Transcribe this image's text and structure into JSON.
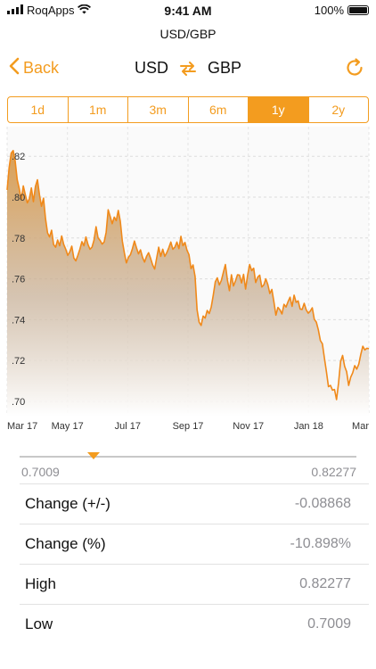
{
  "status_bar": {
    "carrier": "RoqApps",
    "time": "9:41 AM",
    "battery": "100%"
  },
  "screen_title": "USD/GBP",
  "nav": {
    "back_label": "Back",
    "from_currency": "USD",
    "to_currency": "GBP"
  },
  "range_tabs": [
    {
      "label": "1d",
      "active": false
    },
    {
      "label": "1m",
      "active": false
    },
    {
      "label": "3m",
      "active": false
    },
    {
      "label": "6m",
      "active": false
    },
    {
      "label": "1y",
      "active": true
    },
    {
      "label": "2y",
      "active": false
    }
  ],
  "colors": {
    "accent": "#f39c1f",
    "line": "#f0891a",
    "secondary_text": "#8e8e93"
  },
  "chart_data": {
    "type": "area",
    "x_tick_labels": [
      "Mar 17",
      "May 17",
      "Jul 17",
      "Sep 17",
      "Nov 17",
      "Jan 18",
      "Mar"
    ],
    "y_tick_labels": [
      ".82",
      ".80",
      ".78",
      ".76",
      ".74",
      ".72",
      ".70"
    ],
    "y_tick_values": [
      0.82,
      0.8,
      0.78,
      0.76,
      0.74,
      0.72,
      0.7
    ],
    "ylim": [
      0.693,
      0.8345
    ],
    "grid": true,
    "series": [
      {
        "values": [
          0.8035,
          0.8145,
          0.8215,
          0.8228,
          0.8175,
          0.8085,
          0.8042,
          0.7988,
          0.8055,
          0.8012,
          0.7972,
          0.7992,
          0.8045,
          0.7978,
          0.8052,
          0.8085,
          0.8012,
          0.7955,
          0.7995,
          0.7895,
          0.7825,
          0.7805,
          0.7838,
          0.7768,
          0.7755,
          0.779,
          0.7762,
          0.781,
          0.7768,
          0.7745,
          0.7715,
          0.7732,
          0.776,
          0.7702,
          0.7688,
          0.7715,
          0.7745,
          0.7782,
          0.7762,
          0.7805,
          0.7768,
          0.7745,
          0.7755,
          0.779,
          0.7855,
          0.78,
          0.7788,
          0.777,
          0.778,
          0.7828,
          0.7938,
          0.7905,
          0.787,
          0.7902,
          0.7885,
          0.7935,
          0.7882,
          0.7785,
          0.7728,
          0.7678,
          0.7705,
          0.7718,
          0.7748,
          0.7785,
          0.7752,
          0.7722,
          0.7742,
          0.7705,
          0.7682,
          0.771,
          0.7728,
          0.77,
          0.7668,
          0.7648,
          0.7702,
          0.7755,
          0.771,
          0.7745,
          0.771,
          0.7728,
          0.7752,
          0.778,
          0.7745,
          0.7755,
          0.778,
          0.7748,
          0.7808,
          0.7762,
          0.7778,
          0.774,
          0.7718,
          0.765,
          0.7668,
          0.7612,
          0.7448,
          0.7388,
          0.7372,
          0.7418,
          0.7408,
          0.7445,
          0.743,
          0.7462,
          0.752,
          0.7585,
          0.7605,
          0.757,
          0.7592,
          0.7632,
          0.767,
          0.7595,
          0.7542,
          0.762,
          0.7565,
          0.759,
          0.762,
          0.7618,
          0.758,
          0.7622,
          0.755,
          0.7618,
          0.767,
          0.764,
          0.7652,
          0.7582,
          0.7608,
          0.7618,
          0.756,
          0.757,
          0.76,
          0.7572,
          0.7528,
          0.7548,
          0.7488,
          0.7422,
          0.746,
          0.7448,
          0.7428,
          0.7475,
          0.7462,
          0.7488,
          0.751,
          0.7465,
          0.752,
          0.7485,
          0.7492,
          0.7452,
          0.745,
          0.748,
          0.7448,
          0.7432,
          0.7442,
          0.7458,
          0.7402,
          0.7388,
          0.735,
          0.7298,
          0.7282,
          0.7212,
          0.7145,
          0.7072,
          0.7078,
          0.7055,
          0.7058,
          0.7009,
          0.709,
          0.7195,
          0.7225,
          0.7172,
          0.7145,
          0.7078,
          0.7118,
          0.714,
          0.7175,
          0.7158,
          0.7182,
          0.723,
          0.727,
          0.7252,
          0.726,
          0.7258
        ]
      }
    ]
  },
  "slider": {
    "min_label": "0.7009",
    "max_label": "0.82277",
    "marker_fraction": 0.22
  },
  "stats": [
    {
      "label": "Change (+/-)",
      "value": "-0.08868"
    },
    {
      "label": "Change (%)",
      "value": "-10.898%"
    },
    {
      "label": "High",
      "value": "0.82277"
    },
    {
      "label": "Low",
      "value": "0.7009"
    }
  ]
}
